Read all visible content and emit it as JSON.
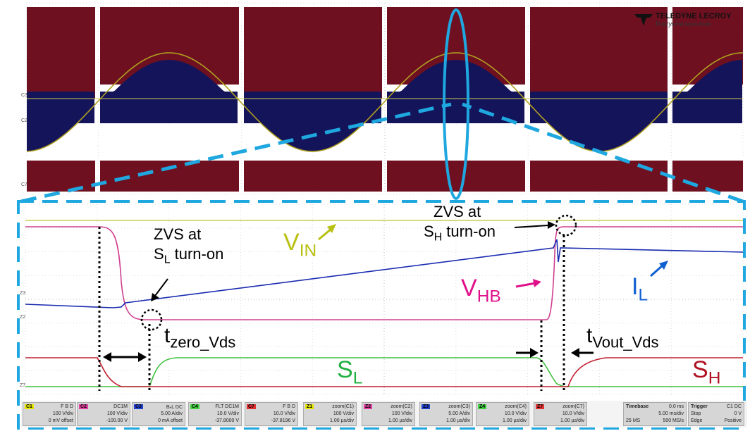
{
  "brand": {
    "name": "TELEDYNE LECROY",
    "tagline": "Everywhereyoulook"
  },
  "annotations": {
    "zvs_sl_line1": "ZVS at",
    "zvs_sl_line2_main": "S",
    "zvs_sl_line2_sub": "L",
    "zvs_sl_line2_rest": " turn-on",
    "zvs_sh_line1": "ZVS at",
    "zvs_sh_line2_main": "S",
    "zvs_sh_line2_sub": "H",
    "zvs_sh_line2_rest": " turn-on",
    "vin_main": "V",
    "vin_sub": "IN",
    "vhb_main": "V",
    "vhb_sub": "HB",
    "il_main": "I",
    "il_sub": "L",
    "tzero_main": "t",
    "tzero_sub": "zero_Vds",
    "tvout_main": "t",
    "tvout_sub": "Vout_Vds",
    "sl_main": "S",
    "sl_sub": "L",
    "sh_main": "S",
    "sh_sub": "H"
  },
  "channel_markers": {
    "top": [
      "C3",
      "C2",
      "C7"
    ],
    "bottom": [
      "Z3",
      "Z2",
      "Z7"
    ]
  },
  "channels": [
    {
      "tag": "C1",
      "color": "#e6e600",
      "l1": "F B D",
      "l2": "100 V/div",
      "l3": "0 mV offset"
    },
    {
      "tag": "C2",
      "color": "#e040a0",
      "l1": "DC1M",
      "l2": "100 V/div",
      "l3": "-100.00 V"
    },
    {
      "tag": "C3",
      "color": "#2040d0",
      "l1": "BₕL DC",
      "l2": "5.00 A/div",
      "l3": "0 mA offset"
    },
    {
      "tag": "C4",
      "color": "#40d040",
      "l1": "FLT DC1M",
      "l2": "10.0 V/div",
      "l3": "-37.8000 V"
    },
    {
      "tag": "C7",
      "color": "#e03030",
      "l1": "F B D",
      "l2": "10.0 V/div",
      "l3": "-37.8196 V"
    },
    {
      "tag": "Z1",
      "color": "#e6e600",
      "l1": "zoom(C1)",
      "l2": "100 V/div",
      "l3": "1.00 µs/div"
    },
    {
      "tag": "Z2",
      "color": "#e040a0",
      "l1": "zoom(C2)",
      "l2": "100 V/div",
      "l3": "1.00 µs/div"
    },
    {
      "tag": "Z3",
      "color": "#2040d0",
      "l1": "zoom(C3)",
      "l2": "5.00 A/div",
      "l3": "1.00 µs/div"
    },
    {
      "tag": "Z4",
      "color": "#40d040",
      "l1": "zoom(C4)",
      "l2": "10.0 V/div",
      "l3": "1.00 µs/div"
    },
    {
      "tag": "Z7",
      "color": "#e03030",
      "l1": "zoom(C7)",
      "l2": "10.0 V/div",
      "l3": "1.00 µs/div"
    }
  ],
  "timebase": {
    "label": "Timebase",
    "offset": "0.0 ms",
    "div": "5.00 ms/div",
    "samples": "25 MS",
    "rate": "500 MS/s"
  },
  "trigger": {
    "label": "Trigger",
    "source": "C1 DC",
    "mode": "Stop",
    "level": "0 V",
    "type": "Edge",
    "slope": "Positive"
  },
  "chart_data": {
    "type": "line",
    "panels": [
      {
        "name": "overview",
        "x_div_count": 10,
        "y_div_count": 8,
        "series": [
          {
            "name": "C1",
            "color": "#b0a020",
            "shape": "sine, ~2.5 cycles across 10 divisions"
          },
          {
            "name": "C2",
            "color": "#6e1020",
            "shape": "switching envelope, bands"
          },
          {
            "name": "C3",
            "color": "#14145a",
            "shape": "inductor current envelope"
          }
        ]
      },
      {
        "name": "zoom",
        "x_div_count": 10,
        "y_div_count": 8,
        "series": [
          {
            "name": "Z1",
            "color": "#c8cc50",
            "values_desc": "flat high"
          },
          {
            "name": "Z2",
            "color": "#d04090",
            "values_desc": "high, falls at ~0.9 div, low, rises at ~7.4 div"
          },
          {
            "name": "Z3",
            "color": "#1a2cb0",
            "values_desc": "flat, ramps up from ~1 div to ~7.4 div, then decays"
          },
          {
            "name": "Z4",
            "color": "#40c040",
            "values_desc": "low until ~1.7 div, high, falls at ~7.3 div"
          },
          {
            "name": "Z7",
            "color": "#c02030",
            "values_desc": "high, falls at ~1 div, low until ~7.7 div, rises"
          }
        ]
      }
    ]
  }
}
